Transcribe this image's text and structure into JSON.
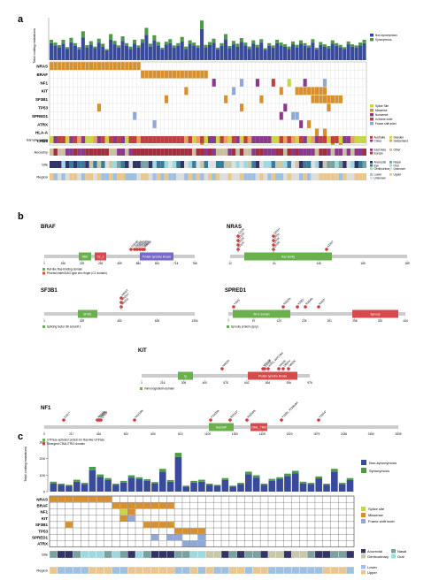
{
  "panel_a": {
    "label": "a",
    "y_axis_title": "Total coding mutations",
    "legend": [
      {
        "name": "Non-synonymous",
        "color": "#3a4a9a"
      },
      {
        "name": "Synonymous",
        "color": "#4a9a46"
      }
    ],
    "genes": [
      "NRAS",
      "BRAF",
      "NF1",
      "KIT",
      "SF3B1",
      "TP53",
      "SPRED1",
      "ATRX",
      "HLA-A",
      "CHD8"
    ],
    "mutation_legend": [
      {
        "name": "Splice Site",
        "color": "#c8d646"
      },
      {
        "name": "Missense",
        "color": "#d8902e"
      },
      {
        "name": "Nonsense",
        "color": "#8a3a8a"
      },
      {
        "name": "In frame indel",
        "color": "#c04040"
      },
      {
        "name": "Frame shift indel",
        "color": "#90a8d8"
      }
    ],
    "tracks": [
      "Sample origin",
      "Ancestry",
      "Site",
      "Region"
    ],
    "track_legends": [
      [
        {
          "name": "Australia",
          "color": "#c04040"
        },
        {
          "name": "Sweden",
          "color": "#c8d646"
        },
        {
          "name": "China",
          "color": "#8a3a8a"
        },
        {
          "name": "Switzerland",
          "color": "#e8a060"
        }
      ],
      [
        {
          "name": "East Asia",
          "color": "#8a3a8a"
        },
        {
          "name": "Other",
          "color": "#c8c0a0"
        },
        {
          "name": "Europe",
          "color": "#a03040"
        }
      ],
      [
        {
          "name": "Anorectal",
          "color": "#333366"
        },
        {
          "name": "Nasal",
          "color": "#7aa0a0"
        },
        {
          "name": "Eye",
          "color": "#3a7a9a"
        },
        {
          "name": "Oral",
          "color": "#a0d8e0"
        },
        {
          "name": "Genitourinary",
          "color": "#c8c8a8"
        },
        {
          "name": "Unknown",
          "color": "#e0e0e0"
        }
      ],
      [
        {
          "name": "Lower",
          "color": "#a0c0e0"
        },
        {
          "name": "Upper",
          "color": "#e8c890"
        },
        {
          "name": "Unknown",
          "color": "#dddddd"
        }
      ]
    ]
  },
  "panel_b": {
    "label": "b",
    "proteins": [
      {
        "name": "BRAF",
        "ticks": [
          "1",
          "156",
          "229",
          "282",
          "459",
          "584",
          "651",
          "714",
          "766"
        ],
        "domains": [
          "RBD",
          "C1_1",
          "Protein tyrosine kinase"
        ],
        "legend": [
          "Raf-like Ras-binding domain",
          "Phorbol-ester/DAG-type zinc finger (C1 domain)"
        ],
        "mutations": [
          "G464E",
          "G466E",
          "G469A",
          "D594G",
          "V600E",
          "K601E"
        ]
      },
      {
        "name": "NRAS",
        "ticks": [
          "12",
          "61",
          "146",
          "165",
          "189"
        ],
        "domains": [
          "Ras family"
        ],
        "mutations": [
          "G12A",
          "G12C",
          "G12D",
          "G12S",
          "Q61R",
          "Q61K",
          "Q61L",
          "Q61H",
          "A146T"
        ]
      },
      {
        "name": "SF3B1",
        "ticks": [
          "1",
          "329",
          "452",
          "625",
          "1304"
        ],
        "domains": [
          "SF3b1"
        ],
        "legend": [
          "Splicing factor 3B subunit 1"
        ],
        "mutations": [
          "R625C",
          "R625H",
          "K666T"
        ]
      },
      {
        "name": "SPRED1",
        "ticks": [
          "7",
          "97",
          "120",
          "226",
          "251",
          "298",
          "320",
          "444"
        ],
        "domains": [
          "WH1 domain",
          "Sprouty"
        ],
        "legend": [
          "Sprouty protein (spry)"
        ],
        "mutations": [
          "Y34S",
          "R262fs",
          "K230*",
          "R284fs",
          "R262*"
        ]
      },
      {
        "name": "KIT",
        "ticks": [
          "1",
          "216",
          "305",
          "400",
          "578",
          "642",
          "816",
          "926",
          "976"
        ],
        "domains": [
          "Ig",
          "Protein tyrosine kinase"
        ],
        "legend": [
          "Immunoglobulin domain"
        ],
        "mutations": [
          "N402S",
          "L576P",
          "W557R",
          "K550_W557del",
          "K642E",
          "D816V",
          "N822K"
        ]
      },
      {
        "name": "NF1",
        "ticks": [
          "0",
          "217",
          "416",
          "500",
          "650",
          "810",
          "1100",
          "1300",
          "1409",
          "1520",
          "1679",
          "2186",
          "2450",
          "2839"
        ],
        "domains": [
          "RasGAP",
          "CRAL_TRIO"
        ],
        "legend": [
          "GTPase-activator protein for Ras-like GTPase",
          "Divergent CRAL/TRIO domain"
        ],
        "mutations": [
          "E217*",
          "R416fs",
          "S468fs",
          "Q519*",
          "N1219fs",
          "P1409fs",
          "R1513*",
          "R2258fs",
          "Y2285_Y2286del",
          "Y2264*"
        ]
      }
    ]
  },
  "panel_c": {
    "label": "c",
    "y_axis_title": "Total coding mutations",
    "y_ticks": [
      "0",
      "100",
      "200",
      "300"
    ],
    "legend": [
      {
        "name": "Non-synonymous",
        "color": "#3a4a9a"
      },
      {
        "name": "Synonymous",
        "color": "#4a9a46"
      }
    ],
    "genes": [
      "NRAS",
      "BRAF",
      "NF1",
      "KIT",
      "SF3B1",
      "TP53",
      "SPRED1",
      "ATRX"
    ],
    "mutation_legend": [
      {
        "name": "Splice site",
        "color": "#c8d646"
      },
      {
        "name": "Missense",
        "color": "#d8902e"
      },
      {
        "name": "Frame shift indel",
        "color": "#90a8d8"
      }
    ],
    "tracks": [
      "Site",
      "Region"
    ],
    "site_legend": [
      {
        "name": "Anorectal",
        "color": "#333366"
      },
      {
        "name": "Nasal",
        "color": "#7aa0a0"
      },
      {
        "name": "Genitourinary",
        "color": "#c8c8a8"
      },
      {
        "name": "Oral",
        "color": "#a0d8e0"
      }
    ],
    "region_legend": [
      {
        "name": "Lower",
        "color": "#a0c0e0"
      },
      {
        "name": "Upper",
        "color": "#e8c890"
      }
    ]
  },
  "chart_data": [
    {
      "type": "bar",
      "panel": "a",
      "ylabel": "Total coding mutations",
      "series": [
        {
          "name": "Non-synonymous",
          "values": [
            60,
            52,
            45,
            58,
            40,
            63,
            50,
            38,
            80,
            45,
            55,
            42,
            62,
            48,
            35,
            72,
            56,
            44,
            68,
            50,
            40,
            58,
            44,
            62,
            90,
            48,
            70,
            52,
            38,
            55,
            60,
            44,
            50,
            66,
            40,
            58,
            52,
            44,
            110,
            46,
            54,
            62,
            38,
            50,
            74,
            42,
            56,
            48,
            64,
            52,
            40,
            58,
            46,
            62,
            36,
            50,
            44,
            60,
            52,
            48,
            40,
            56,
            46,
            58,
            50,
            44,
            62,
            38,
            54,
            48,
            42,
            58,
            50,
            46,
            40,
            56,
            48,
            44,
            52,
            60
          ]
        },
        {
          "name": "Synonymous",
          "values": [
            12,
            10,
            8,
            14,
            6,
            16,
            10,
            8,
            22,
            8,
            12,
            6,
            14,
            10,
            4,
            20,
            12,
            8,
            16,
            10,
            8,
            14,
            8,
            12,
            24,
            10,
            18,
            12,
            6,
            10,
            14,
            8,
            10,
            16,
            8,
            12,
            10,
            8,
            30,
            8,
            10,
            14,
            6,
            10,
            18,
            8,
            12,
            10,
            14,
            10,
            8,
            12,
            8,
            12,
            6,
            10,
            8,
            12,
            10,
            8,
            8,
            10,
            8,
            12,
            10,
            8,
            12,
            6,
            10,
            8,
            8,
            12,
            10,
            8,
            6,
            10,
            8,
            8,
            10,
            12
          ]
        }
      ]
    },
    {
      "type": "bar",
      "panel": "c",
      "ylabel": "Total coding mutations",
      "ylim": [
        0,
        300
      ],
      "series": [
        {
          "name": "Non-synonymous",
          "values": [
            50,
            40,
            35,
            60,
            45,
            130,
            90,
            70,
            40,
            55,
            85,
            75,
            65,
            50,
            120,
            60,
            210,
            30,
            55,
            60,
            40,
            35,
            70,
            30,
            45,
            105,
            85,
            40,
            65,
            75,
            95,
            110,
            50,
            45,
            80,
            40,
            120,
            45,
            70
          ]
        },
        {
          "name": "Synonymous",
          "values": [
            10,
            8,
            6,
            12,
            8,
            20,
            14,
            12,
            8,
            10,
            14,
            12,
            10,
            8,
            18,
            10,
            25,
            6,
            10,
            12,
            8,
            6,
            12,
            6,
            8,
            16,
            14,
            8,
            12,
            12,
            14,
            16,
            10,
            8,
            12,
            8,
            18,
            8,
            12
          ]
        }
      ]
    }
  ]
}
